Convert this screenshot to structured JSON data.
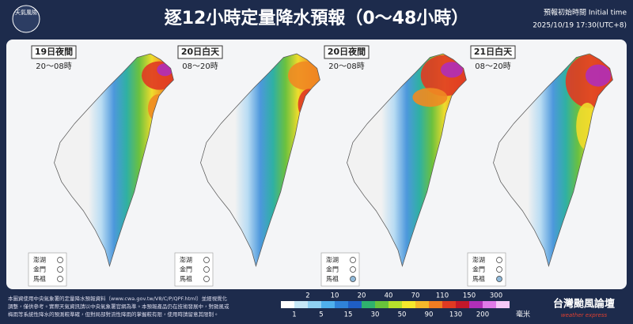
{
  "header": {
    "logo": "天氣風險",
    "title": "逐12小時定量降水預報（0～48小時）",
    "init_label": "預報初始時間 Initial time",
    "init_time": "2025/10/19  17:30(UTC+8)"
  },
  "panels": [
    {
      "day": "19日夜間",
      "hours": "20～08時"
    },
    {
      "day": "20日白天",
      "hours": "08～20時"
    },
    {
      "day": "20日夜間",
      "hours": "20～08時"
    },
    {
      "day": "21日白天",
      "hours": "08～20時"
    }
  ],
  "islands": [
    "澎湖",
    "金門",
    "馬祖"
  ],
  "legend": {
    "upper": [
      "2",
      "10",
      "20",
      "40",
      "70",
      "110",
      "150",
      "300"
    ],
    "lower": [
      "1",
      "5",
      "15",
      "30",
      "50",
      "90",
      "130",
      "200"
    ],
    "unit": "毫米"
  },
  "footer": {
    "lines": [
      "本圖資使用中央氣象署的定量降水預報資料（www.cwa.gov.tw/V8/C/P/QPF.html）並經視覺化",
      "調整，僅供參考。實際天氣資訊請以中央氣象署官網為準。本預報產品仍在技術發展中，對颱風或",
      "梅雨等系統性降水的預測較準確，但對局部對流性降雨的掌握較有限，使用時請留意其限制。"
    ]
  },
  "brand": {
    "name": "台灣颱風論壇",
    "tagline": "weather express"
  }
}
